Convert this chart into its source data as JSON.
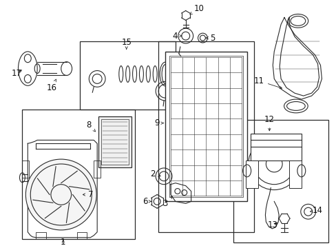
{
  "bg_color": "#ffffff",
  "line_color": "#2a2a2a",
  "fig_width": 4.89,
  "fig_height": 3.6,
  "dpi": 100,
  "font_size": 8.5
}
